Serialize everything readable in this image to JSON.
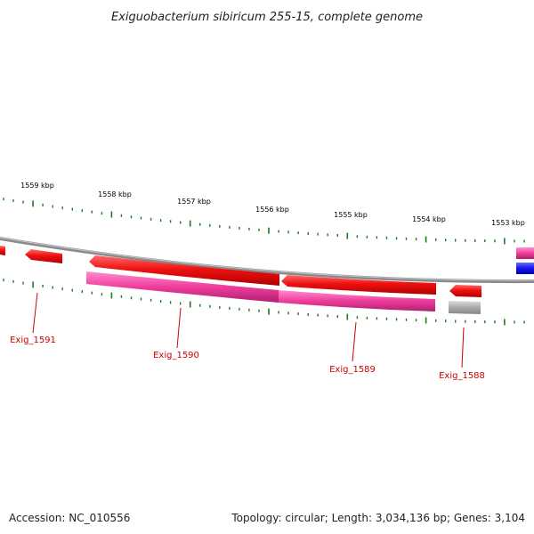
{
  "title": "Exiguobacterium sibiricum 255-15, complete genome",
  "footer": {
    "accession": "Accession: NC_010556",
    "summary": "Topology: circular; Length: 3,034,136 bp; Genes: 3,104"
  },
  "colors": {
    "backbone": "#8a8a8a",
    "tick": "#1f7a1f",
    "gene_red": "#ee1111",
    "gene_pink": "#ee3d9c",
    "gene_gray": "#aaaaaa",
    "gene_blue": "#1515ee",
    "label": "#cc0000"
  },
  "kbp_labels": [
    "1559 kbp",
    "1558 kbp",
    "1557 kbp",
    "1556 kbp",
    "1555 kbp",
    "1554 kbp",
    "1553 kbp"
  ],
  "gene_labels": [
    "Exig_1591",
    "Exig_1590",
    "Exig_1589",
    "Exig_1588"
  ],
  "features": [
    {
      "name": "gene-red-1",
      "track": "forward",
      "color": "red"
    },
    {
      "name": "gene-red-2",
      "track": "forward",
      "color": "red"
    },
    {
      "name": "gene-red-3",
      "track": "forward",
      "color": "red"
    },
    {
      "name": "gene-red-4",
      "track": "forward",
      "color": "red"
    },
    {
      "name": "gene-red-5",
      "track": "forward",
      "color": "red"
    },
    {
      "name": "cds-pink-1",
      "track": "cds",
      "color": "pink"
    },
    {
      "name": "cds-pink-2",
      "track": "cds",
      "color": "pink"
    },
    {
      "name": "cds-gray-1",
      "track": "cds",
      "color": "gray"
    },
    {
      "name": "gene-pink-edge",
      "track": "edge",
      "color": "pink"
    },
    {
      "name": "gene-blue-edge",
      "track": "edge",
      "color": "blue"
    }
  ]
}
